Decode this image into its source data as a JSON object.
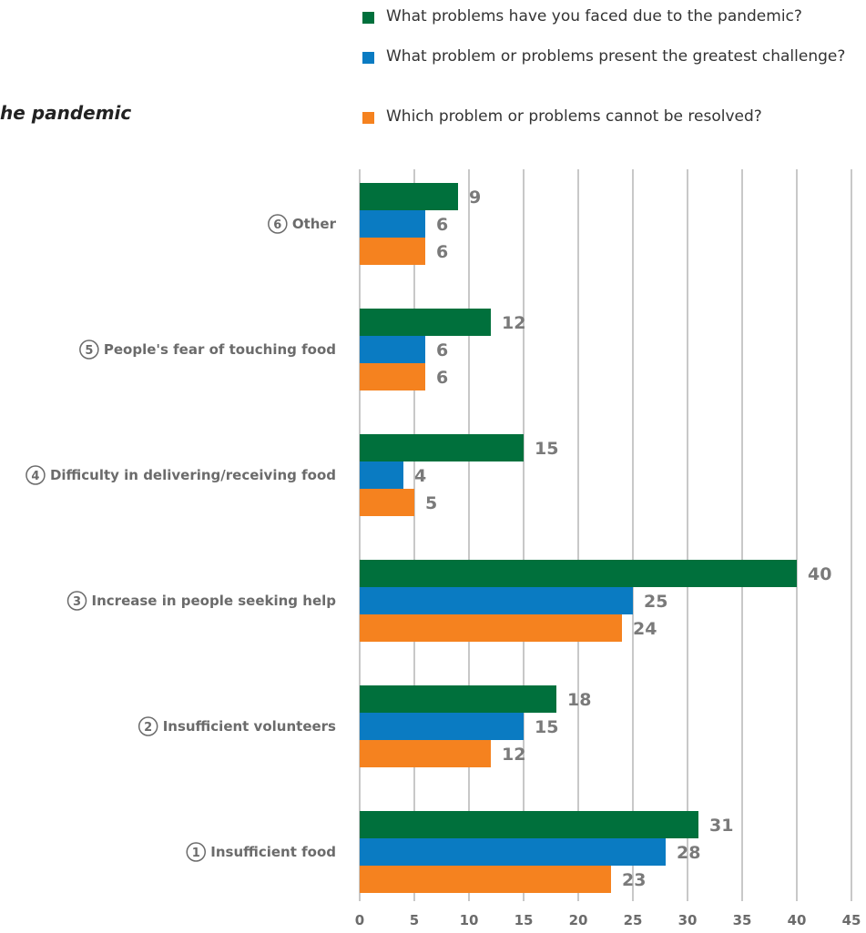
{
  "page": {
    "title_fragment": "he pandemic"
  },
  "chart_data": {
    "type": "bar",
    "orientation": "horizontal",
    "categories": [
      {
        "num": "6",
        "label": "Other"
      },
      {
        "num": "5",
        "label": "People's fear of touching food"
      },
      {
        "num": "4",
        "label": "Difficulty in delivering/receiving food"
      },
      {
        "num": "3",
        "label": "Increase in people seeking help"
      },
      {
        "num": "2",
        "label": "Insufficient volunteers"
      },
      {
        "num": "1",
        "label": "Insufficient food"
      }
    ],
    "series": [
      {
        "name": "What problems have you faced due to the pandemic?",
        "color": "#00703c",
        "values": [
          9,
          12,
          15,
          40,
          18,
          31
        ]
      },
      {
        "name": "What problem or problems present the greatest challenge?",
        "color": "#0a7bc2",
        "values": [
          6,
          6,
          4,
          25,
          15,
          28
        ]
      },
      {
        "name": "Which problem or problems cannot be resolved?",
        "color": "#f5821f",
        "values": [
          6,
          6,
          5,
          24,
          12,
          23
        ]
      }
    ],
    "xlim": [
      0,
      45
    ],
    "x_ticks": [
      0,
      5,
      10,
      15,
      20,
      25,
      30,
      35,
      40,
      45
    ],
    "grid": true,
    "legend_position": "top-right",
    "gridline_color": "#c8c8c8"
  }
}
